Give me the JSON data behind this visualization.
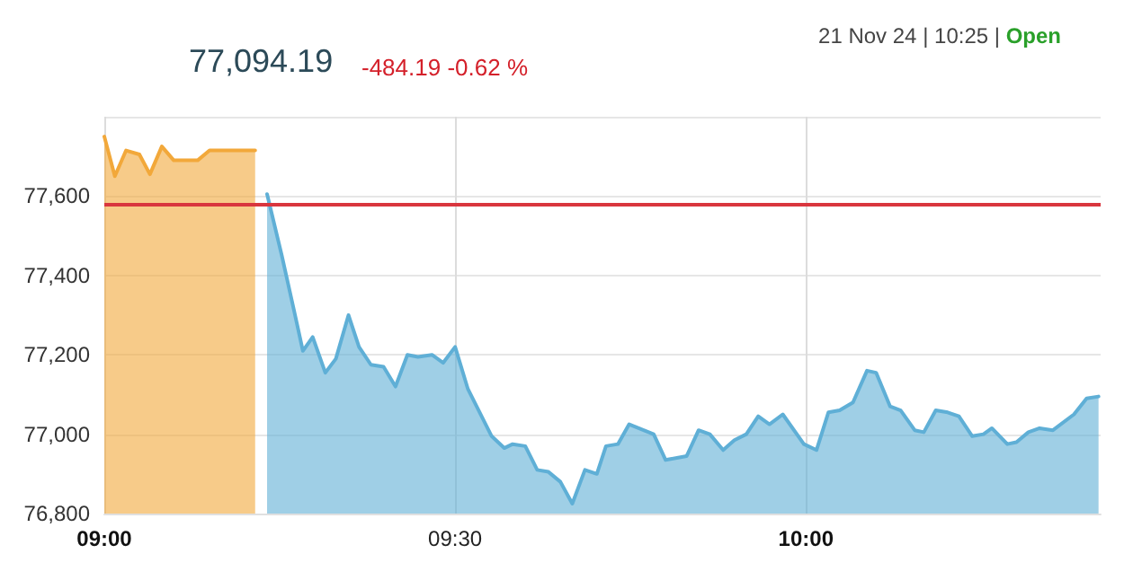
{
  "chart_data": {
    "type": "area",
    "title": "77,094.19",
    "subtitle": "-484.19 -0.62 %",
    "annotations": [
      "21 Nov 24 | 10:25 |",
      "Open"
    ],
    "series": [
      {
        "color": "#f2a83a",
        "x": [
          9.0,
          9.015,
          9.031,
          9.05,
          9.065,
          9.082,
          9.099,
          9.133,
          9.15,
          9.215
        ],
        "values": [
          77750,
          77650,
          77715,
          77705,
          77655,
          77725,
          77690,
          77690,
          77715,
          77715
        ]
      },
      {
        "color": "#5fafd6",
        "x": [
          9.232,
          9.253,
          9.27,
          9.283,
          9.297,
          9.315,
          9.33,
          9.348,
          9.363,
          9.38,
          9.398,
          9.415,
          9.432,
          9.447,
          9.467,
          9.483,
          9.5,
          9.518,
          9.535,
          9.552,
          9.57,
          9.582,
          9.6,
          9.617,
          9.633,
          9.65,
          9.667,
          9.685,
          9.702,
          9.715,
          9.732,
          9.748,
          9.783,
          9.8,
          9.83,
          9.847,
          9.863,
          9.882,
          9.898,
          9.915,
          9.932,
          9.948,
          9.967,
          9.997,
          10.015,
          10.032,
          10.048,
          10.067,
          10.087,
          10.1,
          10.12,
          10.135,
          10.155,
          10.168,
          10.185,
          10.202,
          10.218,
          10.237,
          10.253,
          10.265,
          10.287,
          10.3,
          10.317,
          10.333,
          10.352,
          10.382,
          10.4,
          10.417
        ],
        "values": [
          77605,
          77450,
          77315,
          77210,
          77245,
          77155,
          77190,
          77300,
          77220,
          77175,
          77170,
          77120,
          77200,
          77195,
          77200,
          77180,
          77220,
          77115,
          77055,
          76995,
          76965,
          76975,
          76970,
          76910,
          76905,
          76880,
          76825,
          76910,
          76900,
          76970,
          76975,
          77025,
          77000,
          76935,
          76945,
          77010,
          77000,
          76960,
          76985,
          77000,
          77045,
          77025,
          77050,
          76975,
          76960,
          77055,
          77060,
          77080,
          77160,
          77155,
          77070,
          77060,
          77010,
          77005,
          77060,
          77055,
          77045,
          76995,
          77000,
          77015,
          76975,
          76980,
          77005,
          77015,
          77010,
          77050,
          77090,
          77095
        ]
      }
    ],
    "xlim": [
      9.0,
      10.42
    ],
    "xticks": [
      {
        "value": 9,
        "label": "09:00"
      },
      {
        "value": 9.5,
        "label": "09:30"
      },
      {
        "value": 10,
        "label": "10:00"
      }
    ],
    "ylim": [
      76800,
      77800
    ],
    "yticks": [
      {
        "value": 76800,
        "label": "76,800"
      },
      {
        "value": 77000,
        "label": "77,000"
      },
      {
        "value": 77200,
        "label": "77,200"
      },
      {
        "value": 77400,
        "label": "77,400"
      },
      {
        "value": 77600,
        "label": "77,600"
      },
      {
        "value": 77800,
        "label": null
      }
    ],
    "ref_lines": [
      {
        "axis": "y",
        "value": 77578,
        "color": "#d9363e"
      }
    ],
    "grid": true,
    "marker": "none",
    "line_style": "solid"
  }
}
